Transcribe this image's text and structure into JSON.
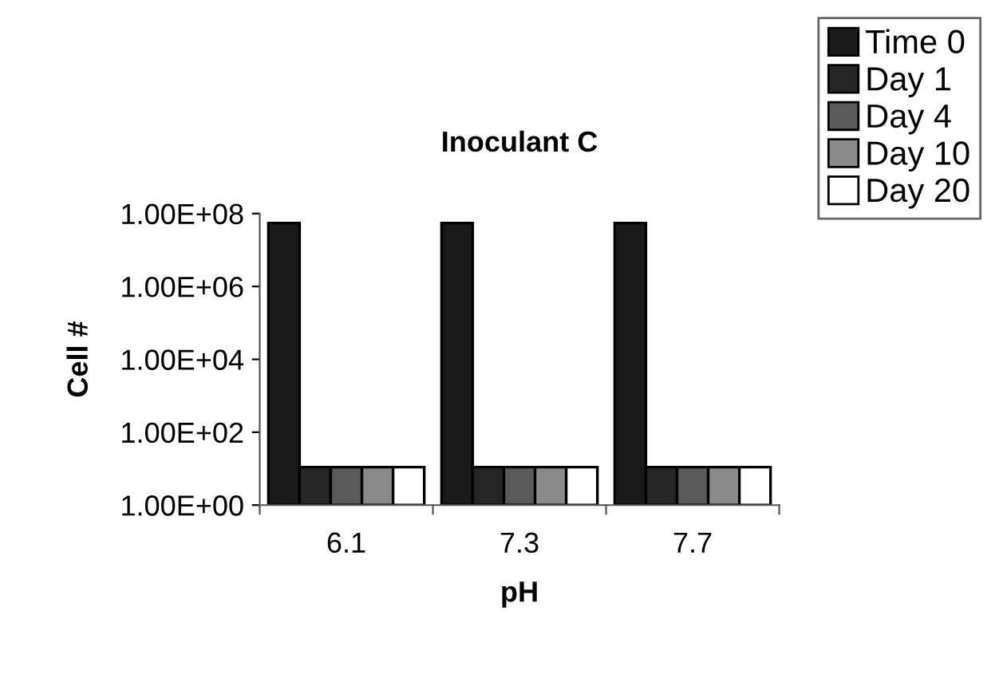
{
  "chart_data": {
    "type": "bar",
    "title": "Inoculant C",
    "xlabel": "pH",
    "ylabel": "Cell #",
    "categories": [
      "6.1",
      "7.3",
      "7.7"
    ],
    "series": [
      {
        "name": "Time 0",
        "color": "#1a1a1a",
        "values": [
          55000000,
          55000000,
          55000000
        ]
      },
      {
        "name": "Day 1",
        "color": "#262626",
        "values": [
          10,
          10,
          10
        ]
      },
      {
        "name": "Day 4",
        "color": "#5a5a5a",
        "values": [
          10,
          10,
          10
        ]
      },
      {
        "name": "Day 10",
        "color": "#8a8a8a",
        "values": [
          10,
          10,
          10
        ]
      },
      {
        "name": "Day 20",
        "color": "#ffffff",
        "values": [
          10,
          10,
          10
        ]
      }
    ],
    "log": true,
    "ylim": [
      1,
      100000000
    ],
    "yticks": [
      {
        "value": 1,
        "label": "1.00E+00"
      },
      {
        "value": 100,
        "label": "1.00E+02"
      },
      {
        "value": 10000,
        "label": "1.00E+04"
      },
      {
        "value": 1000000,
        "label": "1.00E+06"
      },
      {
        "value": 100000000,
        "label": "1.00E+08"
      }
    ],
    "grid": false,
    "legend": "top right"
  }
}
